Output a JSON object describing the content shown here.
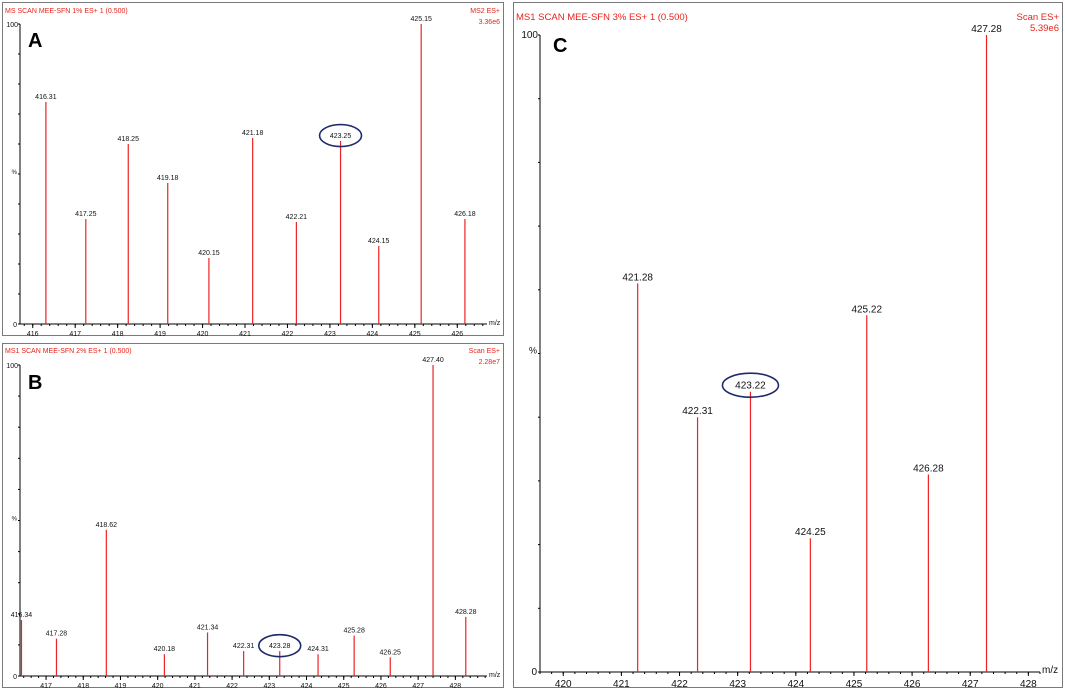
{
  "colors": {
    "peak": "#ee2222",
    "header": "#e8231c",
    "circle": "#1f2a6b",
    "frame": "#7a7a7a"
  },
  "chart_data": [
    {
      "panel": "A",
      "type": "bar",
      "title": "MS SCAN MEE-SFN 1% ES+ 1 (0.500)",
      "scan_mode": "MS2 ES+",
      "intensity": "3.36e6",
      "xlabel": "m/z",
      "ylabel": "%",
      "y_ticks": [
        "100",
        "0"
      ],
      "x_ticks": [
        416,
        417,
        418,
        419,
        420,
        421,
        422,
        423,
        424,
        425,
        426
      ],
      "xlim": [
        415.7,
        426.7
      ],
      "ylim": [
        0,
        100
      ],
      "x": [
        416.31,
        417.25,
        418.25,
        419.18,
        420.15,
        421.18,
        422.21,
        423.25,
        424.15,
        425.15,
        426.18
      ],
      "values": [
        74,
        35,
        60,
        47,
        22,
        62,
        34,
        61,
        26,
        100,
        35
      ],
      "labels": [
        "416.31",
        "417.25",
        "418.25",
        "419.18",
        "420.15",
        "421.18",
        "422.21",
        "423.25",
        "424.15",
        "425.15",
        "426.18"
      ],
      "highlighted": "423.25"
    },
    {
      "panel": "B",
      "type": "bar",
      "title": "MS1 SCAN MEE-SFN 2% ES+ 1 (0.500)",
      "scan_mode": "Scan ES+",
      "intensity": "2.28e7",
      "xlabel": "m/z",
      "ylabel": "%",
      "y_ticks": [
        "100",
        "0"
      ],
      "x_ticks": [
        417,
        418,
        419,
        420,
        421,
        422,
        423,
        424,
        425,
        426,
        427,
        428
      ],
      "xlim": [
        416.3,
        428.85
      ],
      "ylim": [
        0,
        100
      ],
      "x": [
        416.34,
        417.28,
        418.62,
        420.18,
        421.34,
        422.31,
        423.28,
        424.31,
        425.28,
        426.25,
        427.4,
        428.28
      ],
      "values": [
        18,
        12,
        47,
        7,
        14,
        8,
        8,
        7,
        13,
        6,
        100,
        19
      ],
      "labels": [
        "416.34",
        "417.28",
        "418.62",
        "420.18",
        "421.34",
        "422.31",
        "423.28",
        "424.31",
        "425.28",
        "426.25",
        "427.40",
        "428.28"
      ],
      "highlighted": "423.28"
    },
    {
      "panel": "C",
      "type": "bar",
      "title": "MS1 SCAN MEE-SFN 3% ES+ 1 (0.500)",
      "scan_mode": "Scan ES+",
      "intensity": "5.39e6",
      "xlabel": "m/z",
      "ylabel": "%",
      "y_ticks": [
        "100",
        "0"
      ],
      "x_ticks": [
        420,
        421,
        422,
        423,
        424,
        425,
        426,
        427,
        428
      ],
      "xlim": [
        419.6,
        428.2
      ],
      "ylim": [
        0,
        100
      ],
      "x": [
        421.28,
        422.31,
        423.22,
        424.25,
        425.22,
        426.28,
        427.28
      ],
      "values": [
        61,
        40,
        44,
        21,
        56,
        31,
        100
      ],
      "labels": [
        "421.28",
        "422.31",
        "423.22",
        "424.25",
        "425.22",
        "426.28",
        "427.28"
      ],
      "highlighted": "423.22"
    }
  ]
}
